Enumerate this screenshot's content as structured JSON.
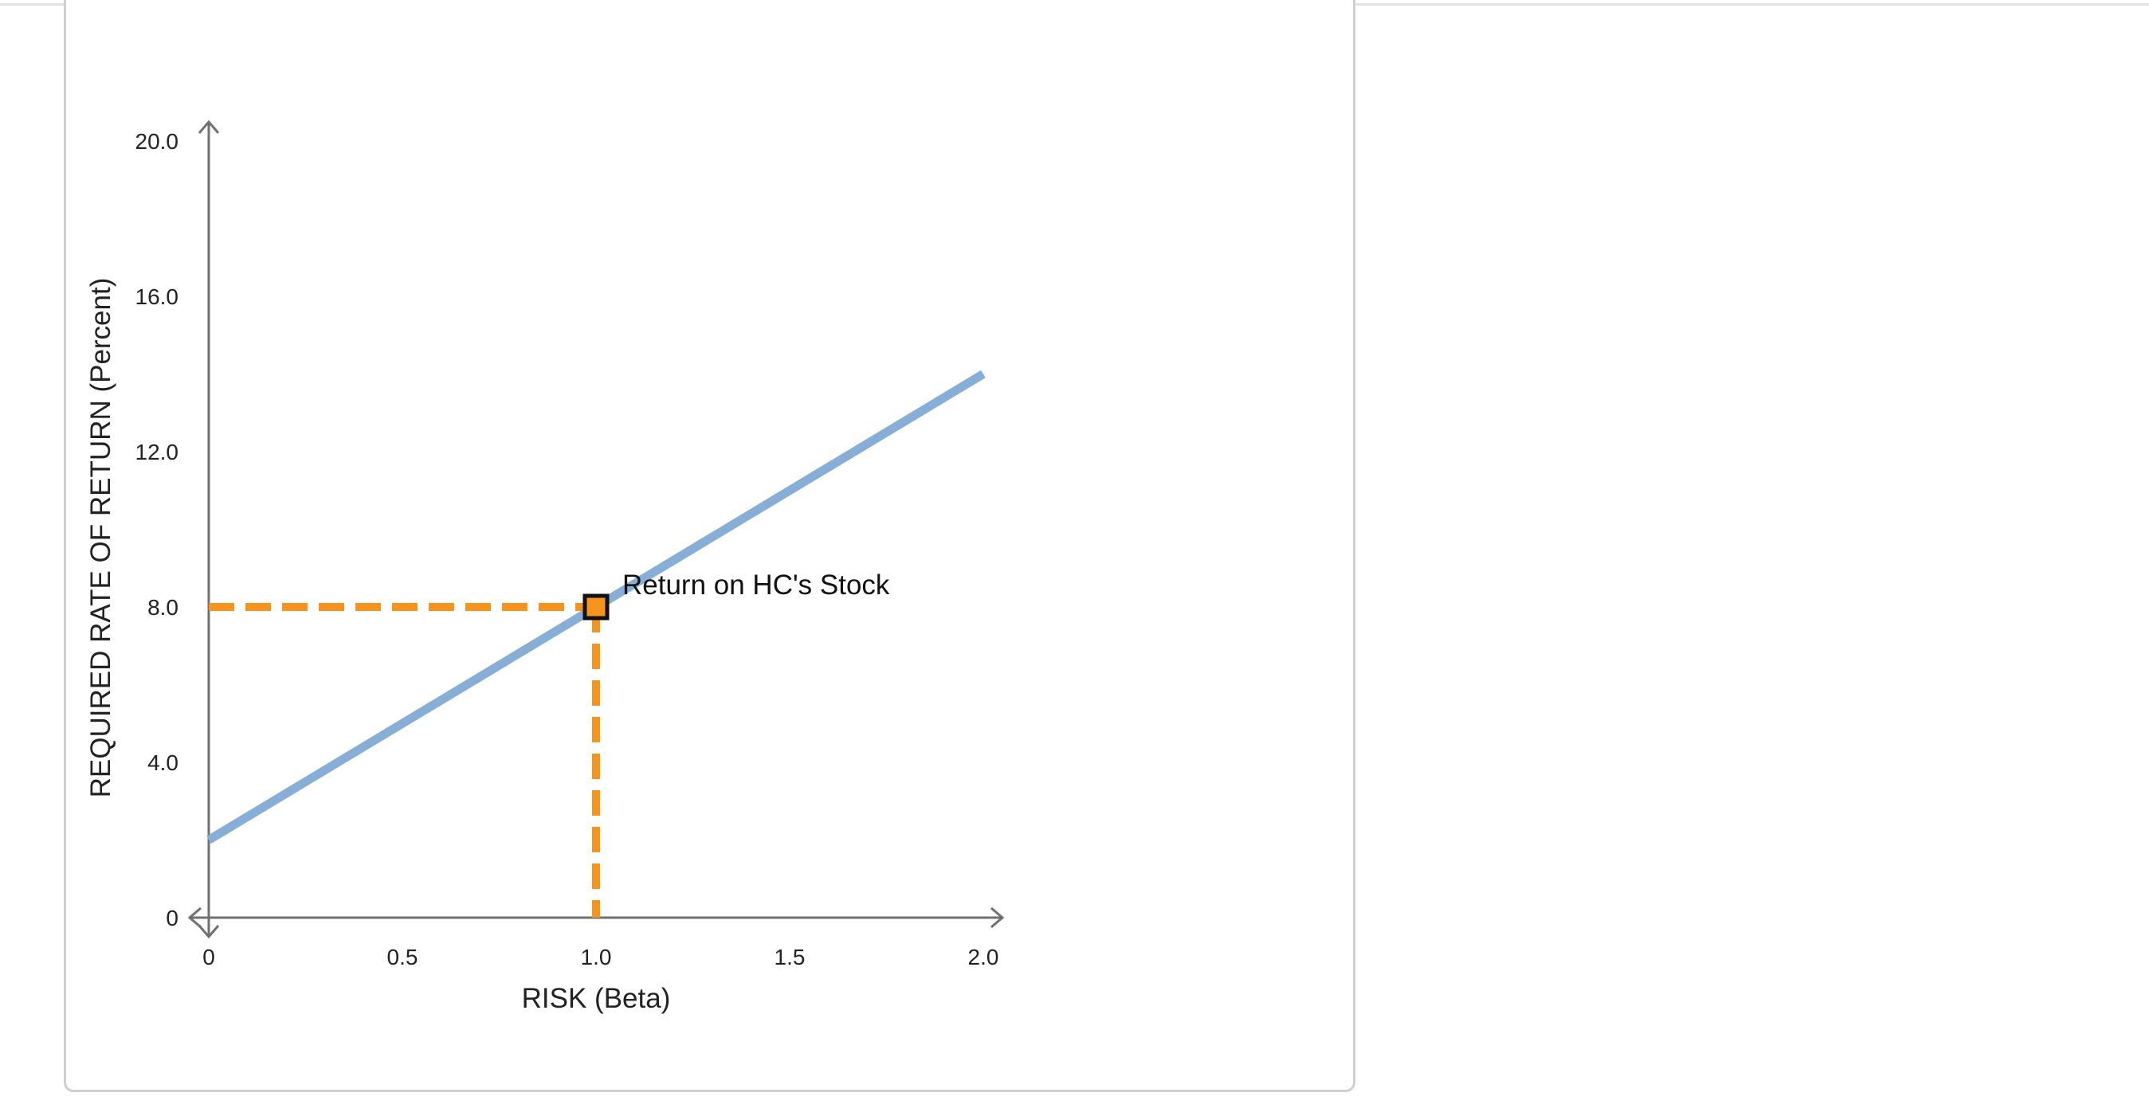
{
  "chart_data": {
    "type": "line",
    "xlabel": "RISK (Beta)",
    "ylabel": "REQUIRED RATE OF RETURN (Percent)",
    "xlim": [
      0,
      2.0
    ],
    "ylim": [
      0,
      20.0
    ],
    "x_ticks": [
      "0",
      "0.5",
      "1.0",
      "1.5",
      "2.0"
    ],
    "y_ticks": [
      "0",
      "4.0",
      "8.0",
      "12.0",
      "16.0",
      "20.0"
    ],
    "series": [
      {
        "x": [
          0,
          2.0
        ],
        "y": [
          2.0,
          14.0
        ],
        "color": "#87aed6"
      }
    ],
    "point": {
      "label": "Return on HC's Stock",
      "x": 1.0,
      "y": 8.0,
      "color": "#f7941d"
    },
    "grid": false
  }
}
